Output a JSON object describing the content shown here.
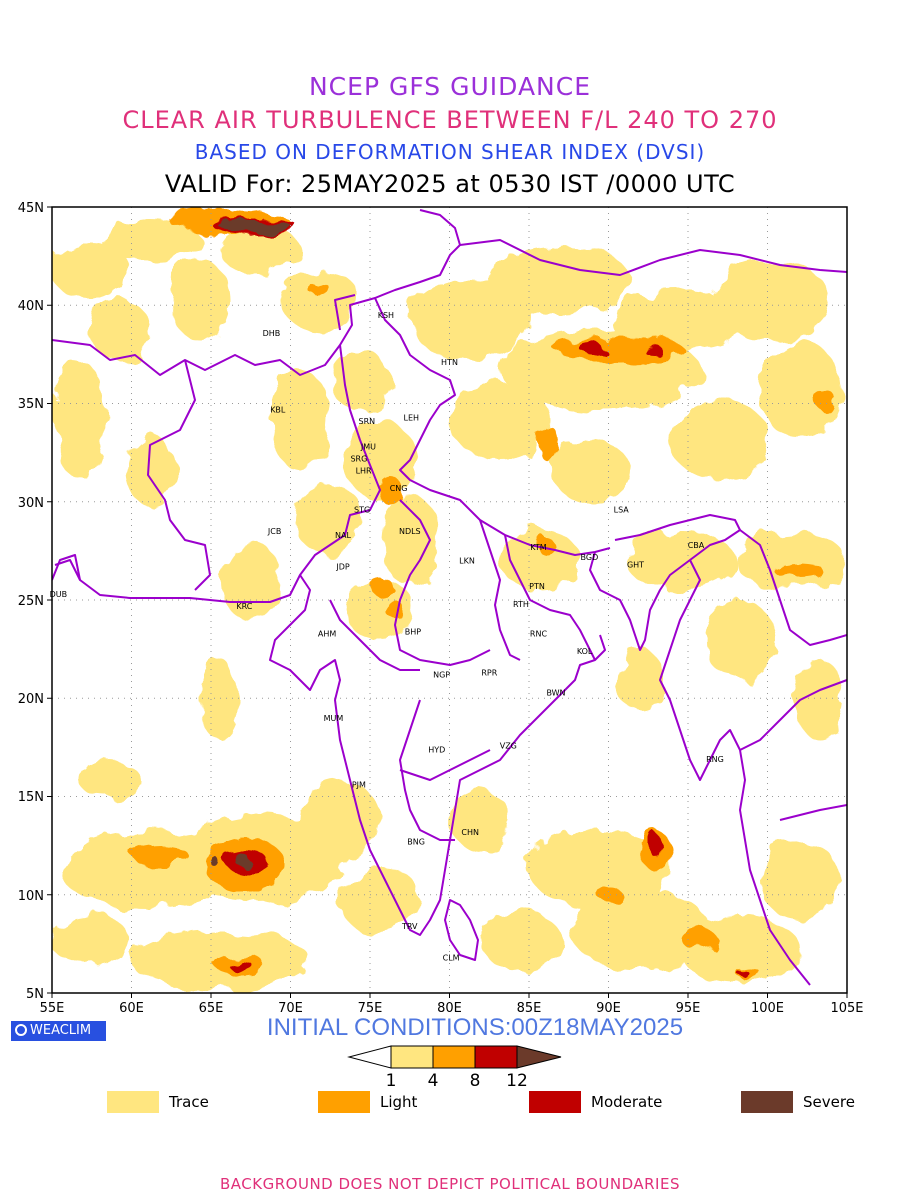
{
  "titles": {
    "line1": "NCEP GFS GUIDANCE",
    "line2": "CLEAR AIR TURBULENCE BETWEEN F/L 240 TO 270",
    "line3": "BASED ON DEFORMATION SHEAR INDEX (DVSI)",
    "line4": "VALID For: 25MAY2025 at 0530 IST /0000 UTC"
  },
  "axes": {
    "lat_labels": [
      "45N",
      "40N",
      "35N",
      "30N",
      "25N",
      "20N",
      "15N",
      "10N",
      "5N"
    ],
    "lon_labels": [
      "55E",
      "60E",
      "65E",
      "70E",
      "75E",
      "80E",
      "85E",
      "90E",
      "95E",
      "100E",
      "105E"
    ]
  },
  "cities": [
    {
      "code": "KSH",
      "lon": 76.0,
      "lat": 39.5
    },
    {
      "code": "DHB",
      "lon": 68.8,
      "lat": 38.6
    },
    {
      "code": "HTN",
      "lon": 80.0,
      "lat": 37.1
    },
    {
      "code": "KBL",
      "lon": 69.2,
      "lat": 34.7
    },
    {
      "code": "SRN",
      "lon": 74.8,
      "lat": 34.1
    },
    {
      "code": "LEH",
      "lon": 77.6,
      "lat": 34.3
    },
    {
      "code": "JMU",
      "lon": 74.9,
      "lat": 32.8
    },
    {
      "code": "SRG",
      "lon": 74.3,
      "lat": 32.2
    },
    {
      "code": "LHR",
      "lon": 74.6,
      "lat": 31.6
    },
    {
      "code": "CNG",
      "lon": 76.8,
      "lat": 30.7
    },
    {
      "code": "STG",
      "lon": 74.5,
      "lat": 29.6
    },
    {
      "code": "JCB",
      "lon": 69.0,
      "lat": 28.5
    },
    {
      "code": "NAL",
      "lon": 73.3,
      "lat": 28.3
    },
    {
      "code": "NDLS",
      "lon": 77.5,
      "lat": 28.5
    },
    {
      "code": "LSA",
      "lon": 90.8,
      "lat": 29.6
    },
    {
      "code": "KTM",
      "lon": 85.6,
      "lat": 27.7
    },
    {
      "code": "CBA",
      "lon": 95.5,
      "lat": 27.8
    },
    {
      "code": "LKN",
      "lon": 81.1,
      "lat": 27.0
    },
    {
      "code": "BGD",
      "lon": 88.8,
      "lat": 27.2
    },
    {
      "code": "GHT",
      "lon": 91.7,
      "lat": 26.8
    },
    {
      "code": "JDP",
      "lon": 73.3,
      "lat": 26.7
    },
    {
      "code": "PTN",
      "lon": 85.5,
      "lat": 25.7
    },
    {
      "code": "DUB",
      "lon": 55.4,
      "lat": 25.3
    },
    {
      "code": "KRC",
      "lon": 67.1,
      "lat": 24.7
    },
    {
      "code": "RTH",
      "lon": 84.5,
      "lat": 24.8
    },
    {
      "code": "AHM",
      "lon": 72.3,
      "lat": 23.3
    },
    {
      "code": "BHP",
      "lon": 77.7,
      "lat": 23.4
    },
    {
      "code": "RNC",
      "lon": 85.6,
      "lat": 23.3
    },
    {
      "code": "KOL",
      "lon": 88.5,
      "lat": 22.4
    },
    {
      "code": "NGP",
      "lon": 79.5,
      "lat": 21.2
    },
    {
      "code": "RPR",
      "lon": 82.5,
      "lat": 21.3
    },
    {
      "code": "BWN",
      "lon": 86.7,
      "lat": 20.3
    },
    {
      "code": "MUM",
      "lon": 72.7,
      "lat": 19.0
    },
    {
      "code": "HYD",
      "lon": 79.2,
      "lat": 17.4
    },
    {
      "code": "VZG",
      "lon": 83.7,
      "lat": 17.6
    },
    {
      "code": "RNG",
      "lon": 96.7,
      "lat": 16.9
    },
    {
      "code": "PJM",
      "lon": 74.3,
      "lat": 15.6
    },
    {
      "code": "CHN",
      "lon": 81.3,
      "lat": 13.2
    },
    {
      "code": "BNG",
      "lon": 77.9,
      "lat": 12.7
    },
    {
      "code": "TRV",
      "lon": 77.5,
      "lat": 8.4
    },
    {
      "code": "CLM",
      "lon": 80.1,
      "lat": 6.8
    }
  ],
  "colors": {
    "trace": "#ffe680",
    "light": "#ffa000",
    "moderate": "#c00000",
    "severe": "#6b3a2a",
    "boundary": "#9b00cc"
  },
  "logo": {
    "text": "WEACLIM",
    "icon": "circle-logo-icon"
  },
  "initial_conditions": "INITIAL CONDITIONS:00Z18MAY2025",
  "colorbar": {
    "ticks": [
      "1",
      "4",
      "8",
      "12"
    ]
  },
  "legend": [
    {
      "label": "Trace",
      "color": "#ffe680"
    },
    {
      "label": "Light",
      "color": "#ffa000"
    },
    {
      "label": "Moderate",
      "color": "#c00000"
    },
    {
      "label": "Severe",
      "color": "#6b3a2a"
    }
  ],
  "footer": "BACKGROUND DOES NOT DEPICT POLITICAL BOUNDARIES"
}
